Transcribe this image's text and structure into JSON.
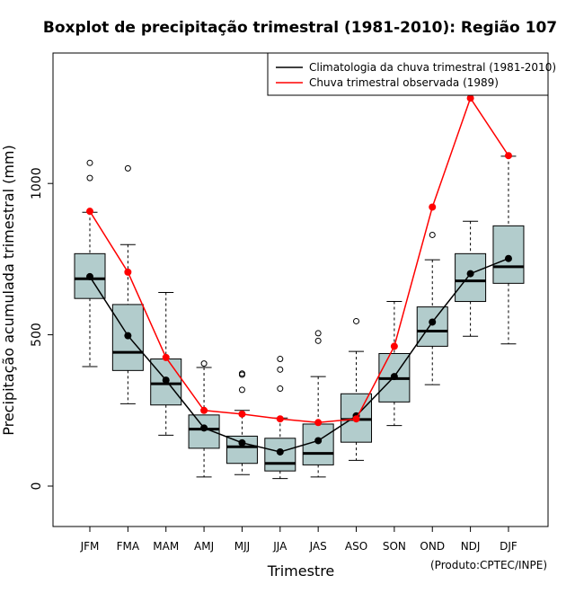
{
  "chart_data": {
    "type": "boxplot",
    "title": "Boxplot de precipitação trimestral (1981-2010): Região 107",
    "xlabel": "Trimestre",
    "ylabel": "Precipitação acumulada trimestral (mm)",
    "credit": "(Produto:CPTEC/INPE)",
    "ylim": [
      -130,
      1440
    ],
    "yticks": [
      0,
      500,
      1000
    ],
    "ytick_labels": [
      "0",
      "500",
      "1000"
    ],
    "categories": [
      "JFM",
      "FMA",
      "MAM",
      "AMJ",
      "MJJ",
      "JJA",
      "JAS",
      "ASO",
      "SON",
      "OND",
      "NDJ",
      "DJF"
    ],
    "boxes": [
      {
        "category": "JFM",
        "whisker_low": 395,
        "q1": 620,
        "median": 685,
        "q3": 768,
        "whisker_high": 905,
        "outliers": [
          1068,
          1018
        ]
      },
      {
        "category": "FMA",
        "whisker_low": 272,
        "q1": 382,
        "median": 442,
        "q3": 600,
        "whisker_high": 798,
        "outliers": [
          1050
        ]
      },
      {
        "category": "MAM",
        "whisker_low": 168,
        "q1": 268,
        "median": 338,
        "q3": 420,
        "whisker_high": 640,
        "outliers": []
      },
      {
        "category": "AMJ",
        "whisker_low": 30,
        "q1": 125,
        "median": 188,
        "q3": 235,
        "whisker_high": 392,
        "outliers": [
          405
        ]
      },
      {
        "category": "MJJ",
        "whisker_low": 38,
        "q1": 75,
        "median": 130,
        "q3": 165,
        "whisker_high": 250,
        "outliers": [
          372,
          368,
          318
        ]
      },
      {
        "category": "JJA",
        "whisker_low": 25,
        "q1": 50,
        "median": 75,
        "q3": 158,
        "whisker_high": 225,
        "outliers": [
          420,
          385,
          322
        ]
      },
      {
        "category": "JAS",
        "whisker_low": 30,
        "q1": 70,
        "median": 108,
        "q3": 205,
        "whisker_high": 362,
        "outliers": [
          505,
          480
        ]
      },
      {
        "category": "ASO",
        "whisker_low": 85,
        "q1": 145,
        "median": 220,
        "q3": 305,
        "whisker_high": 445,
        "outliers": [
          545
        ]
      },
      {
        "category": "SON",
        "whisker_low": 200,
        "q1": 278,
        "median": 355,
        "q3": 438,
        "whisker_high": 610,
        "outliers": []
      },
      {
        "category": "OND",
        "whisker_low": 335,
        "q1": 462,
        "median": 512,
        "q3": 592,
        "whisker_high": 748,
        "outliers": [
          830
        ]
      },
      {
        "category": "NDJ",
        "whisker_low": 495,
        "q1": 610,
        "median": 678,
        "q3": 768,
        "whisker_high": 875,
        "outliers": []
      },
      {
        "category": "DJF",
        "whisker_low": 470,
        "q1": 670,
        "median": 725,
        "q3": 860,
        "whisker_high": 1090,
        "outliers": []
      }
    ],
    "series": [
      {
        "name": "Climatologia da chuva trimestral (1981-2010)",
        "color": "#000000",
        "values": [
          692,
          497,
          350,
          192,
          143,
          113,
          150,
          232,
          362,
          542,
          702,
          752
        ]
      },
      {
        "name": "Chuva trimestral observada (1989)",
        "color": "#ff0000",
        "values": [
          908,
          707,
          425,
          250,
          238,
          222,
          210,
          222,
          462,
          922,
          1282,
          1092
        ]
      }
    ],
    "legend_position": "top-right",
    "box_fill": "#b2cccc"
  }
}
